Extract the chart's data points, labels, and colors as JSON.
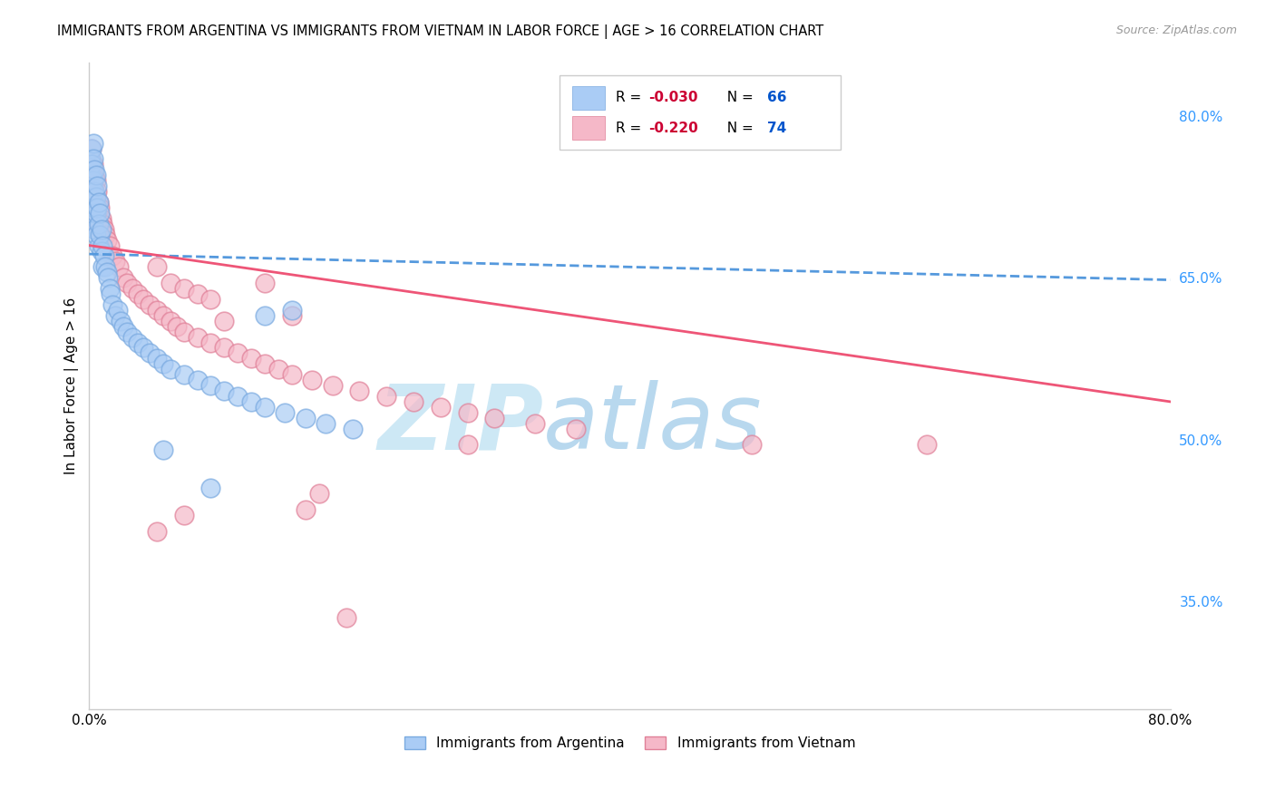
{
  "title": "IMMIGRANTS FROM ARGENTINA VS IMMIGRANTS FROM VIETNAM IN LABOR FORCE | AGE > 16 CORRELATION CHART",
  "source": "Source: ZipAtlas.com",
  "ylabel": "In Labor Force | Age > 16",
  "x_min": 0.0,
  "x_max": 0.8,
  "y_min": 0.25,
  "y_max": 0.85,
  "y_ticks_right": [
    0.35,
    0.5,
    0.65,
    0.8
  ],
  "y_tick_labels_right": [
    "35.0%",
    "50.0%",
    "65.0%",
    "80.0%"
  ],
  "grid_color": "#cccccc",
  "background_color": "#ffffff",
  "watermark_color": "#cde8f5",
  "argentina_color": "#aaccf5",
  "argentina_edge_color": "#7aaae0",
  "vietnam_color": "#f5b8c8",
  "vietnam_edge_color": "#e08098",
  "argentina_R": -0.03,
  "argentina_N": 66,
  "vietnam_R": -0.22,
  "vietnam_N": 74,
  "legend_R_color": "#cc0033",
  "legend_N_color": "#0055cc",
  "argentina_scatter_x": [
    0.001,
    0.001,
    0.001,
    0.002,
    0.002,
    0.002,
    0.002,
    0.002,
    0.003,
    0.003,
    0.003,
    0.003,
    0.003,
    0.004,
    0.004,
    0.004,
    0.004,
    0.005,
    0.005,
    0.005,
    0.005,
    0.006,
    0.006,
    0.007,
    0.007,
    0.007,
    0.008,
    0.008,
    0.009,
    0.009,
    0.01,
    0.01,
    0.011,
    0.012,
    0.013,
    0.014,
    0.015,
    0.016,
    0.017,
    0.019,
    0.021,
    0.023,
    0.025,
    0.028,
    0.032,
    0.036,
    0.04,
    0.045,
    0.05,
    0.055,
    0.06,
    0.07,
    0.08,
    0.09,
    0.1,
    0.11,
    0.12,
    0.13,
    0.145,
    0.16,
    0.175,
    0.195,
    0.13,
    0.15,
    0.055,
    0.09
  ],
  "argentina_scatter_y": [
    0.76,
    0.745,
    0.73,
    0.77,
    0.755,
    0.74,
    0.72,
    0.71,
    0.775,
    0.76,
    0.74,
    0.72,
    0.7,
    0.75,
    0.73,
    0.715,
    0.695,
    0.745,
    0.725,
    0.71,
    0.69,
    0.735,
    0.715,
    0.72,
    0.7,
    0.68,
    0.71,
    0.69,
    0.695,
    0.675,
    0.68,
    0.66,
    0.67,
    0.66,
    0.655,
    0.65,
    0.64,
    0.635,
    0.625,
    0.615,
    0.62,
    0.61,
    0.605,
    0.6,
    0.595,
    0.59,
    0.585,
    0.58,
    0.575,
    0.57,
    0.565,
    0.56,
    0.555,
    0.55,
    0.545,
    0.54,
    0.535,
    0.53,
    0.525,
    0.52,
    0.515,
    0.51,
    0.615,
    0.62,
    0.49,
    0.455
  ],
  "vietnam_scatter_x": [
    0.001,
    0.001,
    0.002,
    0.002,
    0.002,
    0.003,
    0.003,
    0.003,
    0.004,
    0.004,
    0.004,
    0.005,
    0.005,
    0.005,
    0.006,
    0.006,
    0.007,
    0.007,
    0.008,
    0.008,
    0.009,
    0.01,
    0.011,
    0.012,
    0.013,
    0.015,
    0.017,
    0.019,
    0.022,
    0.025,
    0.028,
    0.032,
    0.036,
    0.04,
    0.045,
    0.05,
    0.055,
    0.06,
    0.065,
    0.07,
    0.08,
    0.09,
    0.1,
    0.11,
    0.12,
    0.13,
    0.14,
    0.15,
    0.165,
    0.18,
    0.2,
    0.22,
    0.24,
    0.26,
    0.28,
    0.3,
    0.33,
    0.36,
    0.05,
    0.06,
    0.07,
    0.08,
    0.09,
    0.1,
    0.28,
    0.13,
    0.15,
    0.17,
    0.05,
    0.07,
    0.16,
    0.19,
    0.49,
    0.62
  ],
  "vietnam_scatter_y": [
    0.76,
    0.74,
    0.77,
    0.75,
    0.73,
    0.755,
    0.74,
    0.72,
    0.745,
    0.73,
    0.71,
    0.74,
    0.72,
    0.7,
    0.73,
    0.71,
    0.72,
    0.7,
    0.715,
    0.695,
    0.705,
    0.7,
    0.695,
    0.69,
    0.685,
    0.68,
    0.67,
    0.665,
    0.66,
    0.65,
    0.645,
    0.64,
    0.635,
    0.63,
    0.625,
    0.62,
    0.615,
    0.61,
    0.605,
    0.6,
    0.595,
    0.59,
    0.585,
    0.58,
    0.575,
    0.57,
    0.565,
    0.56,
    0.555,
    0.55,
    0.545,
    0.54,
    0.535,
    0.53,
    0.525,
    0.52,
    0.515,
    0.51,
    0.66,
    0.645,
    0.64,
    0.635,
    0.63,
    0.61,
    0.495,
    0.645,
    0.615,
    0.45,
    0.415,
    0.43,
    0.435,
    0.335,
    0.495,
    0.495
  ],
  "argentina_line_x": [
    0.0,
    0.8
  ],
  "argentina_line_y": [
    0.672,
    0.648
  ],
  "vietnam_line_x": [
    0.0,
    0.8
  ],
  "vietnam_line_y": [
    0.68,
    0.535
  ],
  "line_blue_color": "#5599dd",
  "line_pink_color": "#ee5577",
  "bottom_label_argentina": "Immigrants from Argentina",
  "bottom_label_vietnam": "Immigrants from Vietnam"
}
